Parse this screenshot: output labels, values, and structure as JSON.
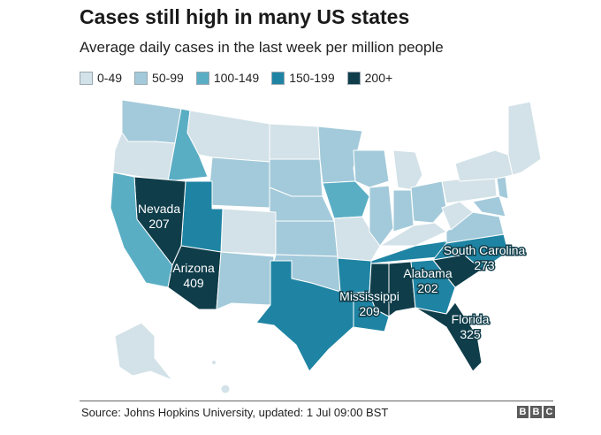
{
  "title": "Cases still high in many US states",
  "subtitle": "Average daily cases in the last week per million people",
  "legend": [
    {
      "label": "0-49",
      "color": "#d3e2e8"
    },
    {
      "label": "50-99",
      "color": "#a3cada"
    },
    {
      "label": "100-149",
      "color": "#5aaec4"
    },
    {
      "label": "150-199",
      "color": "#1f84a3"
    },
    {
      "label": "200+",
      "color": "#0f3d4a"
    }
  ],
  "labels": [
    {
      "state": "Nevada",
      "value": "207"
    },
    {
      "state": "Arizona",
      "value": "409"
    },
    {
      "state": "South Carolina",
      "value": "273"
    },
    {
      "state": "Alabama",
      "value": "202"
    },
    {
      "state": "Mississippi",
      "value": "209"
    },
    {
      "state": "Florida",
      "value": "325"
    }
  ],
  "footer": {
    "source": "Source: Johns Hopkins University, updated: 1 Jul 09:00 BST",
    "logo_letters": [
      "B",
      "B",
      "C"
    ]
  }
}
